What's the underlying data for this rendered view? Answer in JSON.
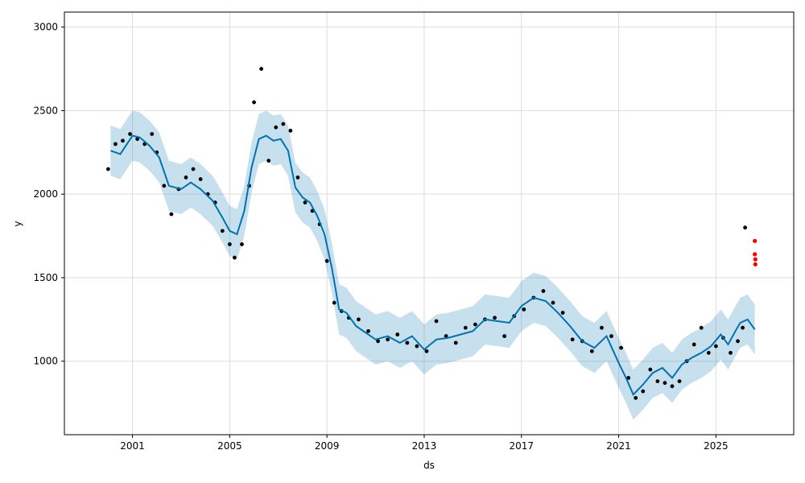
{
  "chart_data": {
    "type": "scatter",
    "title": "",
    "xlabel": "ds",
    "ylabel": "y",
    "x_ticks": [
      "2001",
      "2005",
      "2009",
      "2013",
      "2017",
      "2021",
      "2025"
    ],
    "y_ticks": [
      1000,
      1500,
      2000,
      2500,
      3000
    ],
    "xlim": [
      1998.2,
      2028.2
    ],
    "ylim": [
      560,
      3090
    ],
    "grid": true,
    "legend": "none",
    "colors": {
      "observed": "#000000",
      "forecast_line": "#0072B2",
      "uncertainty_band": "#0072B2",
      "recent_highlight": "#ff0000"
    },
    "series": [
      {
        "kind": "trend",
        "x": [
          2000.1,
          2000.5,
          2001.0,
          2001.3,
          2001.7,
          2002.1,
          2002.5,
          2003.0,
          2003.4,
          2003.8,
          2004.3,
          2004.7,
          2005.0,
          2005.3,
          2005.6,
          2005.9,
          2006.2,
          2006.5,
          2006.8,
          2007.1,
          2007.4,
          2007.7,
          2008.0,
          2008.3,
          2008.6,
          2008.9,
          2009.2,
          2009.5,
          2009.8,
          2010.2,
          2010.6,
          2011.0,
          2011.5,
          2012.0,
          2012.5,
          2013.0,
          2013.5,
          2014.0,
          2014.5,
          2015.0,
          2015.5,
          2016.0,
          2016.5,
          2017.0,
          2017.5,
          2018.0,
          2018.5,
          2019.0,
          2019.5,
          2020.0,
          2020.5,
          2021.0,
          2021.3,
          2021.6,
          2022.0,
          2022.4,
          2022.8,
          2023.2,
          2023.6,
          2024.0,
          2024.4,
          2024.8,
          2025.2,
          2025.5,
          2025.8,
          2026.0,
          2026.3,
          2026.6
        ],
        "y": [
          2260,
          2240,
          2350,
          2340,
          2290,
          2220,
          2050,
          2030,
          2070,
          2030,
          1960,
          1860,
          1780,
          1760,
          1900,
          2160,
          2330,
          2350,
          2320,
          2330,
          2260,
          2040,
          1980,
          1950,
          1870,
          1760,
          1560,
          1310,
          1290,
          1210,
          1170,
          1130,
          1150,
          1110,
          1150,
          1070,
          1130,
          1140,
          1160,
          1180,
          1250,
          1240,
          1230,
          1330,
          1380,
          1360,
          1290,
          1210,
          1120,
          1080,
          1150,
          990,
          900,
          800,
          860,
          930,
          960,
          900,
          980,
          1020,
          1050,
          1090,
          1160,
          1100,
          1180,
          1230,
          1250,
          1190
        ]
      },
      {
        "kind": "observed",
        "x": [
          2000.0,
          2000.3,
          2000.6,
          2000.9,
          2001.2,
          2001.5,
          2001.8,
          2002.0,
          2002.3,
          2002.6,
          2002.9,
          2003.2,
          2003.5,
          2003.8,
          2004.1,
          2004.4,
          2004.7,
          2005.0,
          2005.2,
          2005.5,
          2005.8,
          2006.0,
          2006.3,
          2006.6,
          2006.9,
          2007.2,
          2007.5,
          2007.8,
          2008.1,
          2008.4,
          2008.7,
          2009.0,
          2009.3,
          2009.6,
          2009.9,
          2010.3,
          2010.7,
          2011.1,
          2011.5,
          2011.9,
          2012.3,
          2012.7,
          2013.1,
          2013.5,
          2013.9,
          2014.3,
          2014.7,
          2015.1,
          2015.5,
          2015.9,
          2016.3,
          2016.7,
          2017.1,
          2017.5,
          2017.9,
          2018.3,
          2018.7,
          2019.1,
          2019.5,
          2019.9,
          2020.3,
          2020.7,
          2021.1,
          2021.4,
          2021.7,
          2022.0,
          2022.3,
          2022.6,
          2022.9,
          2023.2,
          2023.5,
          2023.8,
          2024.1,
          2024.4,
          2024.7,
          2025.0,
          2025.3,
          2025.6,
          2025.9,
          2026.1,
          2026.2
        ],
        "y": [
          2150,
          2300,
          2320,
          2360,
          2330,
          2300,
          2360,
          2250,
          2050,
          1880,
          2030,
          2100,
          2150,
          2090,
          2000,
          1950,
          1780,
          1700,
          1620,
          1700,
          2050,
          2550,
          2750,
          2200,
          2400,
          2420,
          2380,
          2100,
          1950,
          1900,
          1820,
          1600,
          1350,
          1300,
          1260,
          1250,
          1180,
          1120,
          1130,
          1160,
          1110,
          1090,
          1060,
          1240,
          1150,
          1110,
          1200,
          1220,
          1250,
          1260,
          1150,
          1270,
          1310,
          1380,
          1420,
          1350,
          1290,
          1130,
          1120,
          1060,
          1200,
          1150,
          1080,
          900,
          780,
          820,
          950,
          880,
          870,
          850,
          880,
          1000,
          1100,
          1200,
          1050,
          1090,
          1140,
          1050,
          1120,
          1200,
          1800
        ]
      },
      {
        "kind": "recent",
        "x": [
          2026.6,
          2026.6,
          2026.62,
          2026.62
        ],
        "y": [
          1720,
          1640,
          1610,
          1580
        ]
      }
    ],
    "band_width": 150
  }
}
